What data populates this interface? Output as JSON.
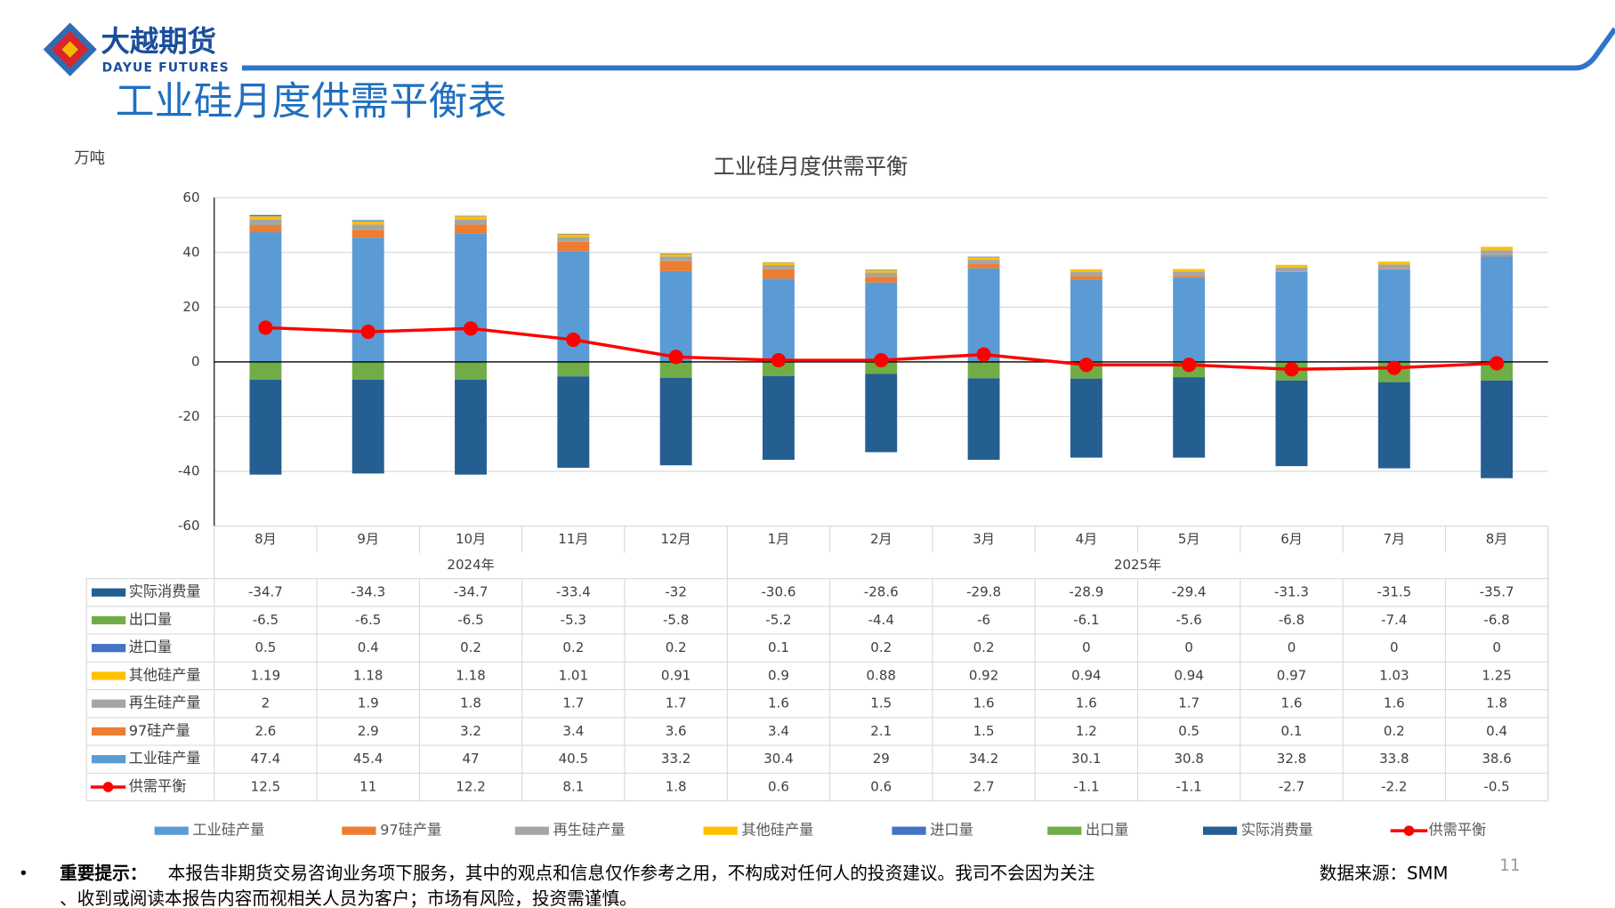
{
  "header": {
    "brand": "大越期货",
    "brand_en": "DAYUE FUTURES",
    "title": "工业硅月度供需平衡表",
    "page_number": "11"
  },
  "notice": {
    "label": "重要提示：",
    "line1": "本报告非期货交易咨询业务项下服务，其中的观点和信息仅作参考之用，不构成对任何人的投资建议。我司不会因为关注",
    "line2": "、收到或阅读本报告内容而视相关人员为客户；市场有风险，投资需谨慎。",
    "source": "数据来源：SMM"
  },
  "chart_data": {
    "type": "stacked_bar_line",
    "title": "工业硅月度供需平衡",
    "y_label": "万吨",
    "categories": [
      "8月",
      "9月",
      "10月",
      "11月",
      "12月",
      "1月",
      "2月",
      "3月",
      "4月",
      "5月",
      "6月",
      "7月",
      "8月"
    ],
    "category_groups": [
      "2024年",
      null,
      null,
      null,
      null,
      "2025年",
      null,
      null,
      null,
      null,
      null,
      null,
      null
    ],
    "ylim": [
      -60,
      60
    ],
    "yticks": [
      -60,
      -40,
      -20,
      0,
      20,
      40,
      60
    ],
    "grid": true,
    "series": [
      {
        "name": "工业硅产量",
        "color": "#5b9bd5",
        "values": [
          47.4,
          45.4,
          47,
          40.5,
          33.2,
          30.4,
          29,
          34.2,
          30.1,
          30.8,
          32.8,
          33.8,
          38.6
        ]
      },
      {
        "name": "97硅产量",
        "color": "#ed7d31",
        "values": [
          2.6,
          2.9,
          3.2,
          3.4,
          3.6,
          3.4,
          2.1,
          1.5,
          1.2,
          0.5,
          0.1,
          0.2,
          0.4
        ]
      },
      {
        "name": "再生硅产量",
        "color": "#a5a5a5",
        "values": [
          2,
          1.9,
          1.8,
          1.7,
          1.7,
          1.6,
          1.5,
          1.6,
          1.6,
          1.7,
          1.6,
          1.6,
          1.8
        ]
      },
      {
        "name": "其他硅产量",
        "color": "#ffc000",
        "values": [
          1.19,
          1.18,
          1.18,
          1.01,
          0.91,
          0.9,
          0.88,
          0.92,
          0.94,
          0.94,
          0.97,
          1.03,
          1.25
        ]
      },
      {
        "name": "进口量",
        "color": "#4472c4",
        "values": [
          0.5,
          0.4,
          0.2,
          0.2,
          0.2,
          0.1,
          0.2,
          0.2,
          0,
          0,
          0,
          0,
          0
        ]
      },
      {
        "name": "出口量",
        "color": "#70ad47",
        "values": [
          -6.5,
          -6.5,
          -6.5,
          -5.3,
          -5.8,
          -5.2,
          -4.4,
          -6,
          -6.1,
          -5.6,
          -6.8,
          -7.4,
          -6.8
        ]
      },
      {
        "name": "实际消费量",
        "color": "#255e91",
        "values": [
          -34.7,
          -34.3,
          -34.7,
          -33.4,
          -32,
          -30.6,
          -28.6,
          -29.8,
          -28.9,
          -29.4,
          -31.3,
          -31.5,
          -35.7
        ]
      },
      {
        "name": "供需平衡",
        "color": "#ff0000",
        "kind": "line",
        "values": [
          12.5,
          11,
          12.2,
          8.1,
          1.8,
          0.6,
          0.6,
          2.7,
          -1.1,
          -1.1,
          -2.7,
          -2.2,
          -0.5
        ]
      }
    ]
  }
}
